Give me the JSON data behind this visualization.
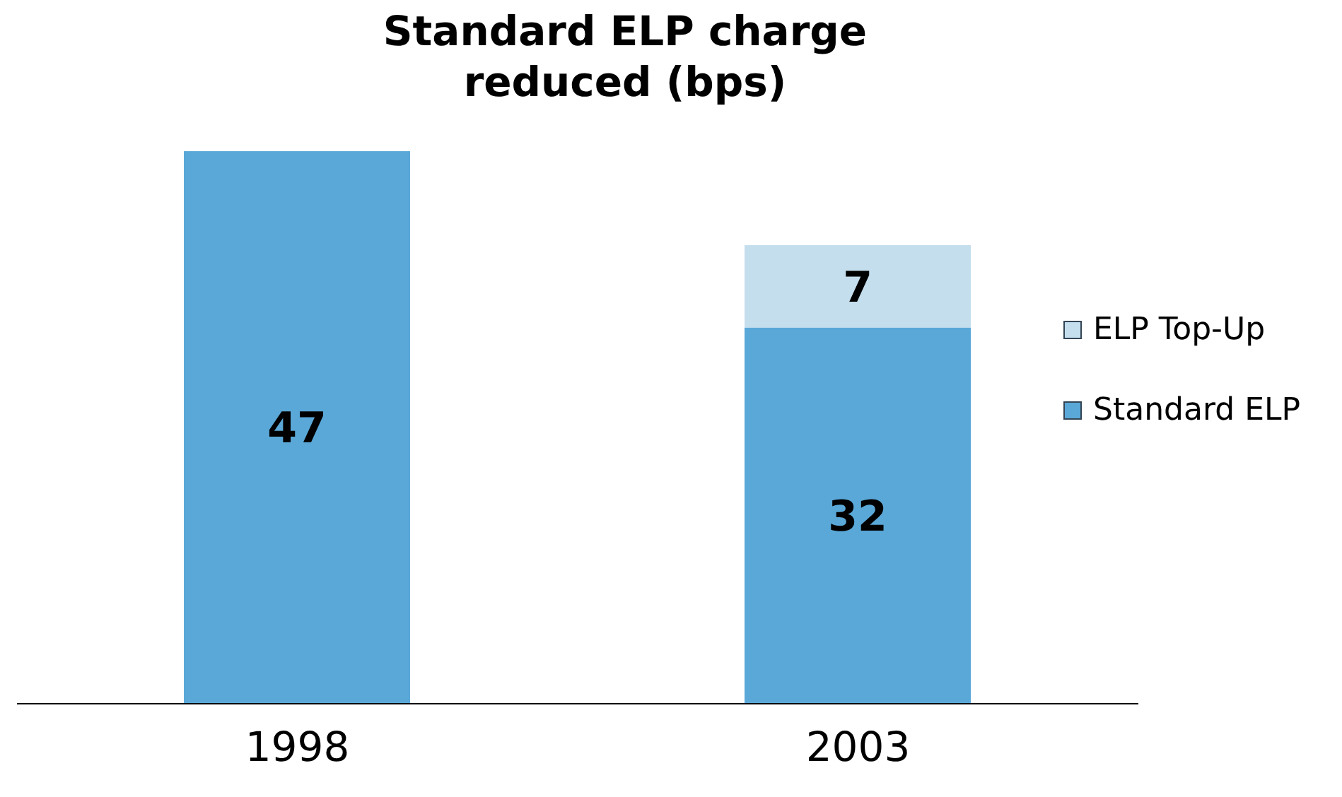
{
  "chart_data": {
    "type": "bar",
    "title": "Standard ELP charge\nreduced (bps)",
    "categories": [
      "1998",
      "2003"
    ],
    "stacked": true,
    "data_labels": true,
    "legend": "right",
    "grid": false,
    "series": [
      {
        "name": "Standard ELP",
        "color": "#5aa8d8",
        "values": [
          47,
          32
        ]
      },
      {
        "name": "ELP Top-Up",
        "color": "#c4deed",
        "values": [
          null,
          7
        ]
      }
    ]
  }
}
